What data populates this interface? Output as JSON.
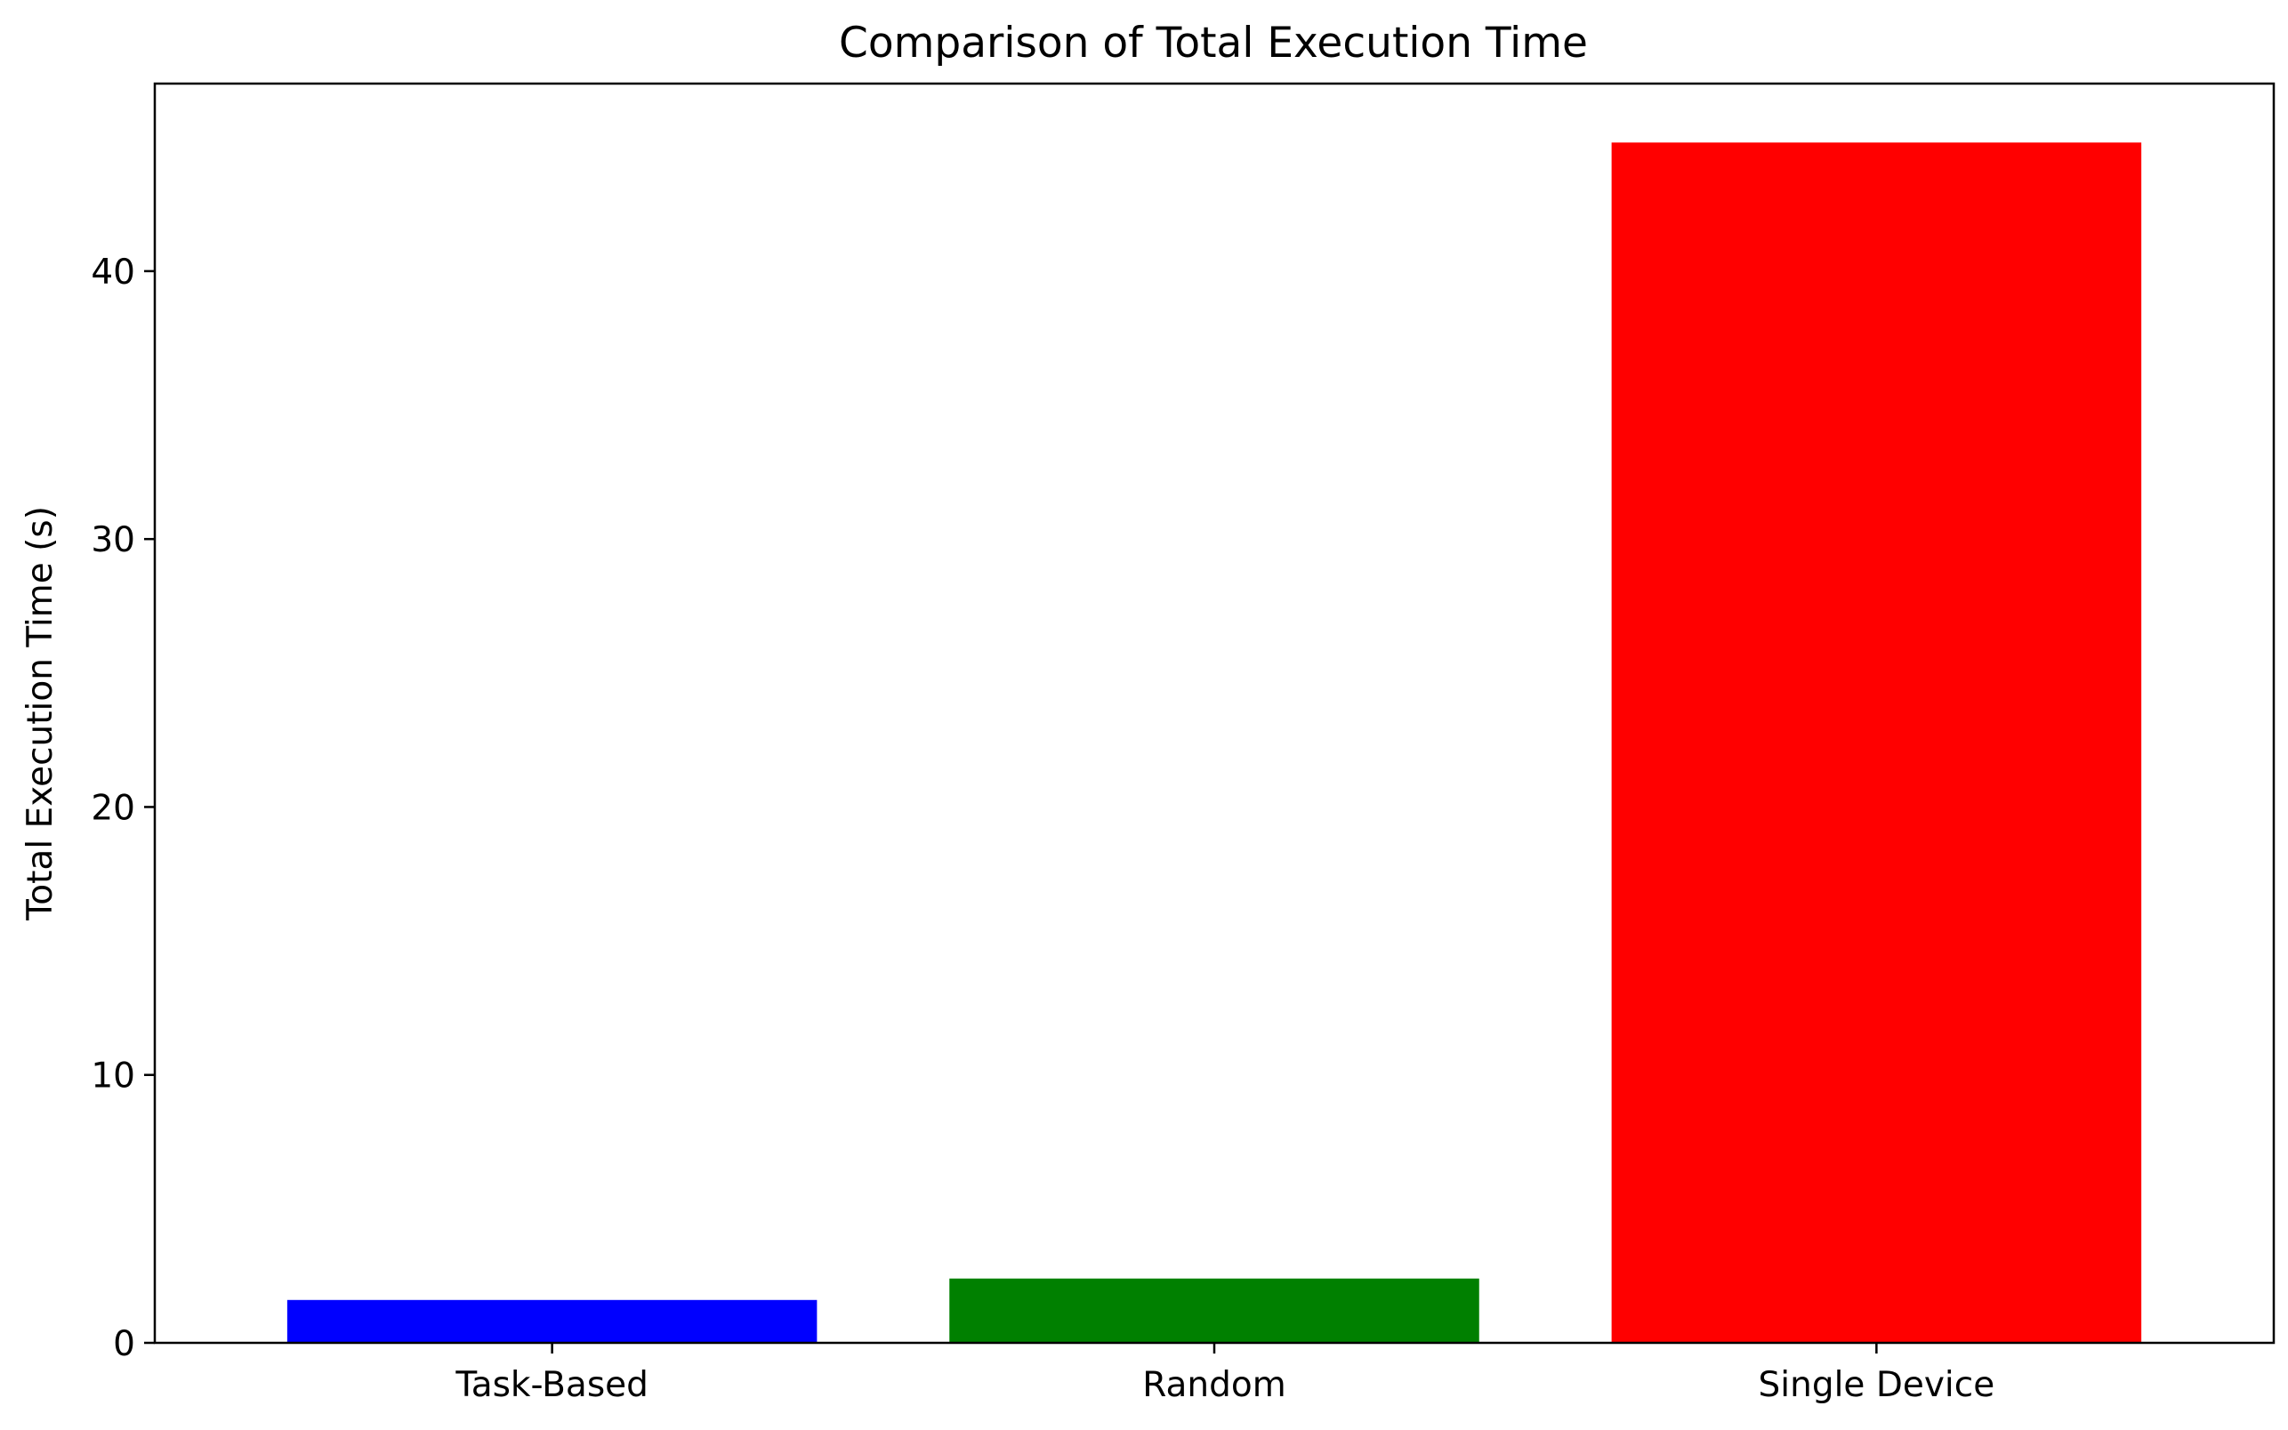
{
  "chart_data": {
    "type": "bar",
    "title": "Comparison of Total Execution Time",
    "xlabel": "",
    "ylabel": "Total Execution Time (s)",
    "categories": [
      "Task-Based",
      "Random",
      "Single Device"
    ],
    "values": [
      1.6,
      2.4,
      44.8
    ],
    "colors": [
      "#0000ff",
      "#008000",
      "#ff0000"
    ],
    "ylim": [
      0,
      47.0
    ],
    "yticks": [
      0,
      10,
      20,
      30,
      40
    ],
    "ytick_labels": [
      "0",
      "10",
      "20",
      "30",
      "40"
    ],
    "grid": false,
    "legend": "none"
  }
}
